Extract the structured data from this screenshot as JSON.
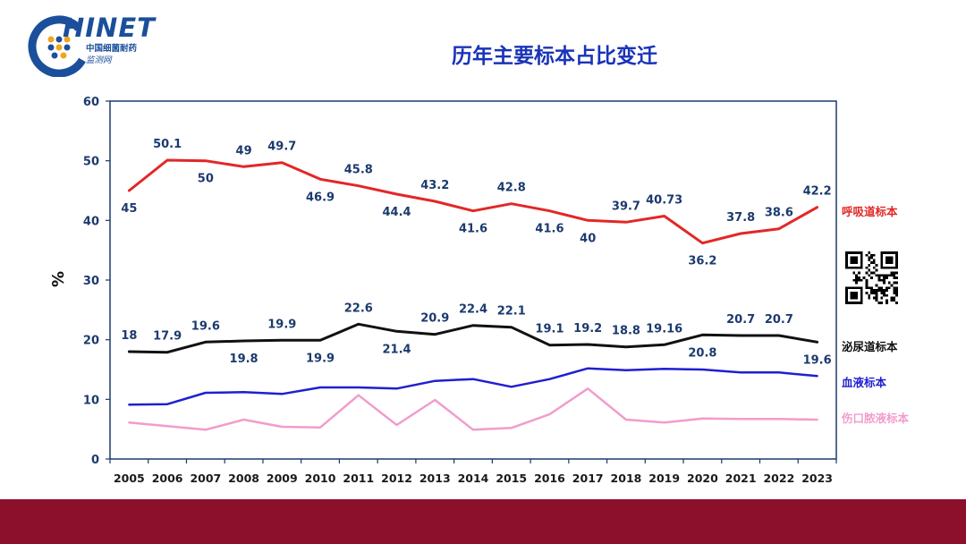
{
  "header": {
    "logo_text": "HINET",
    "logo_sub1": "中国细菌耐药",
    "logo_sub2": "监测网",
    "title": "历年主要标本占比变迁"
  },
  "colors": {
    "respiratory": "#e32727",
    "urinary": "#111111",
    "blood": "#1f1fd1",
    "wound": "#f29ccc",
    "axis_labels": "#1c3a6e",
    "frame": "#1c3a6e",
    "footer": "#8c0f2b",
    "title": "#1a33b8"
  },
  "chart_data": {
    "type": "line",
    "title": "历年主要标本占比变迁",
    "ylabel": "%",
    "xlabel": "",
    "ylim": [
      0,
      60
    ],
    "yticks": [
      "0",
      "10",
      "20",
      "30",
      "40",
      "50",
      "60"
    ],
    "categories": [
      "2005",
      "2006",
      "2007",
      "2008",
      "2009",
      "2010",
      "2011",
      "2012",
      "2013",
      "2014",
      "2015",
      "2016",
      "2017",
      "2018",
      "2019",
      "2020",
      "2021",
      "2022",
      "2023"
    ],
    "grid": false,
    "legend": "right",
    "series": [
      {
        "name": "呼吸道标本",
        "key": "respiratory",
        "values": [
          45,
          50.1,
          50,
          49,
          49.7,
          46.9,
          45.8,
          44.4,
          43.2,
          41.6,
          42.8,
          41.6,
          40,
          39.7,
          40.73,
          36.2,
          37.8,
          38.6,
          42.2
        ],
        "labels": [
          "45",
          "50.1",
          "50",
          "49",
          "49.7",
          "46.9",
          "45.8",
          "44.4",
          "43.2",
          "41.6",
          "42.8",
          "41.6",
          "40",
          "39.7",
          "40.73",
          "36.2",
          "37.8",
          "38.6",
          "42.2"
        ]
      },
      {
        "name": "泌尿道标本",
        "key": "urinary",
        "values": [
          18,
          17.9,
          19.6,
          19.8,
          19.9,
          19.9,
          22.6,
          21.4,
          20.9,
          22.4,
          22.1,
          19.1,
          19.2,
          18.8,
          19.16,
          20.8,
          20.7,
          20.7,
          19.6
        ],
        "labels": [
          "18",
          "17.9",
          "19.6",
          "19.8",
          "19.9",
          "19.9",
          "22.6",
          "21.4",
          "20.9",
          "22.4",
          "22.1",
          "19.1",
          "19.2",
          "18.8",
          "19.16",
          "20.8",
          "20.7",
          "20.7",
          "19.6"
        ]
      },
      {
        "name": "血液标本",
        "key": "blood",
        "values": [
          9.1,
          9.2,
          11.1,
          11.2,
          10.9,
          12.0,
          12.0,
          11.8,
          13.1,
          13.4,
          12.1,
          13.4,
          15.2,
          14.9,
          15.1,
          15.0,
          14.5,
          14.5,
          13.9
        ],
        "labels": []
      },
      {
        "name": "伤口脓液标本",
        "key": "wound",
        "values": [
          6.1,
          5.5,
          4.9,
          6.6,
          5.4,
          5.3,
          10.7,
          5.7,
          9.9,
          4.9,
          5.2,
          7.5,
          11.8,
          6.6,
          6.1,
          6.8,
          6.7,
          6.7,
          6.6
        ],
        "labels": []
      }
    ]
  }
}
